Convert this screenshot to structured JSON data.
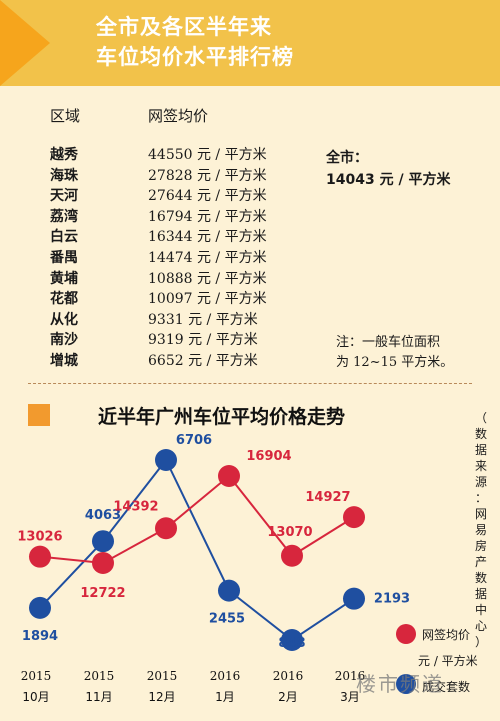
{
  "banner": {
    "title_line1": "全市及各区半年来",
    "title_line2": "车位均价水平排行榜"
  },
  "table": {
    "header_area": "区域",
    "header_price": "网签均价",
    "rows": [
      {
        "area": "越秀",
        "price": "44550 元 / 平方米"
      },
      {
        "area": "海珠",
        "price": "27828 元 / 平方米"
      },
      {
        "area": "天河",
        "price": "27644 元 / 平方米"
      },
      {
        "area": "荔湾",
        "price": "16794 元 / 平方米"
      },
      {
        "area": "白云",
        "price": "16344 元 / 平方米"
      },
      {
        "area": "番禺",
        "price": "14474 元 / 平方米"
      },
      {
        "area": "黄埔",
        "price": "10888 元 / 平方米"
      },
      {
        "area": "花都",
        "price": "10097 元 / 平方米"
      },
      {
        "area": "从化",
        "price": "9331 元 / 平方米"
      },
      {
        "area": "南沙",
        "price": "9319 元 / 平方米"
      },
      {
        "area": "增城",
        "price": "6652 元 / 平方米"
      }
    ],
    "citywide_label": "全市：",
    "citywide_value": "14043 元 / 平方米",
    "note_line1": "注：一般车位面积",
    "note_line2": "为 12~15 平方米。"
  },
  "chart_title": "近半年广州车位平均价格走势",
  "source_text": "（数据来源：网易房产数据中心）",
  "watermark": "楼市频道",
  "legend": {
    "price_label": "网签均价",
    "unit_label": "元 / 平方米",
    "volume_label": "成交套数"
  },
  "colors": {
    "price_series": "#d7263d",
    "volume_series": "#1f4fa0",
    "banner": "#f2c24a",
    "arrow": "#f6a51c",
    "background": "#fdf2d6"
  },
  "chart_data": {
    "type": "line",
    "categories": [
      "2015\n10月",
      "2015\n11月",
      "2015\n12月",
      "2016\n1月",
      "2016\n2月",
      "2016\n3月"
    ],
    "series": [
      {
        "name": "网签均价",
        "unit": "元 / 平方米",
        "values": [
          13026,
          12722,
          14392,
          16904,
          13070,
          14927
        ]
      },
      {
        "name": "成交套数",
        "values": [
          1894,
          4063,
          6706,
          2455,
          848,
          2193
        ]
      }
    ],
    "grid": false
  }
}
